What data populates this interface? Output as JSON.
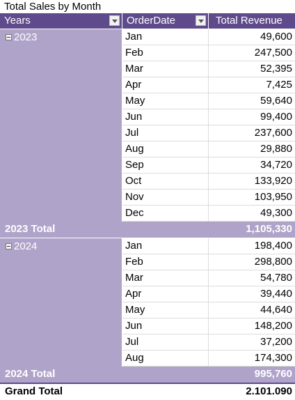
{
  "pivot": {
    "title": "Total Sales by Month",
    "headers": {
      "years": "Years",
      "order_date": "OrderDate",
      "total_revenue": "Total Revenue"
    },
    "groups": [
      {
        "year": "2023",
        "rows": [
          {
            "month": "Jan",
            "value": "49,600"
          },
          {
            "month": "Feb",
            "value": "247,500"
          },
          {
            "month": "Mar",
            "value": "52,395"
          },
          {
            "month": "Apr",
            "value": "7,425"
          },
          {
            "month": "May",
            "value": "59,640"
          },
          {
            "month": "Jun",
            "value": "99,400"
          },
          {
            "month": "Jul",
            "value": "237,600"
          },
          {
            "month": "Aug",
            "value": "29,880"
          },
          {
            "month": "Sep",
            "value": "34,720"
          },
          {
            "month": "Oct",
            "value": "133,920"
          },
          {
            "month": "Nov",
            "value": "103,950"
          },
          {
            "month": "Dec",
            "value": "49,300"
          }
        ],
        "total_label": "2023 Total",
        "total_value": "1,105,330"
      },
      {
        "year": "2024",
        "rows": [
          {
            "month": "Jan",
            "value": "198,400"
          },
          {
            "month": "Feb",
            "value": "298,800"
          },
          {
            "month": "Mar",
            "value": "54,780"
          },
          {
            "month": "Apr",
            "value": "39,440"
          },
          {
            "month": "May",
            "value": "44,640"
          },
          {
            "month": "Jun",
            "value": "148,200"
          },
          {
            "month": "Jul",
            "value": "37,200"
          },
          {
            "month": "Aug",
            "value": "174,300"
          }
        ],
        "total_label": "2024 Total",
        "total_value": "995,760"
      }
    ],
    "grand_total_label": "Grand Total",
    "grand_total_value": "2.101.090",
    "colors": {
      "header": "#5f4b8b",
      "year_block": "#b0a3c9",
      "gridline": "#dcdcdc"
    }
  }
}
